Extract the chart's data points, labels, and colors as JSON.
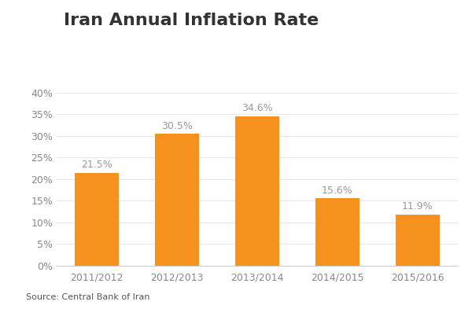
{
  "title": "Iran Annual Inflation Rate",
  "categories": [
    "2011/2012",
    "2012/2013",
    "2013/2014",
    "2014/2015",
    "2015/2016"
  ],
  "values": [
    21.5,
    30.5,
    34.6,
    15.6,
    11.9
  ],
  "bar_color": "#F5921E",
  "label_color": "#999999",
  "ylim": [
    0,
    40
  ],
  "yticks": [
    0,
    5,
    10,
    15,
    20,
    25,
    30,
    35,
    40
  ],
  "ytick_labels": [
    "0%",
    "5%",
    "10%",
    "15%",
    "20%",
    "25%",
    "30%",
    "35%",
    "40%"
  ],
  "title_fontsize": 16,
  "bar_label_fontsize": 9,
  "tick_fontsize": 9,
  "source_text": "Source: Central Bank of Iran",
  "accent_color": "#E8721C",
  "title_bar_color": "#E8721C",
  "background_color": "#FFFFFF",
  "bar_width": 0.55
}
